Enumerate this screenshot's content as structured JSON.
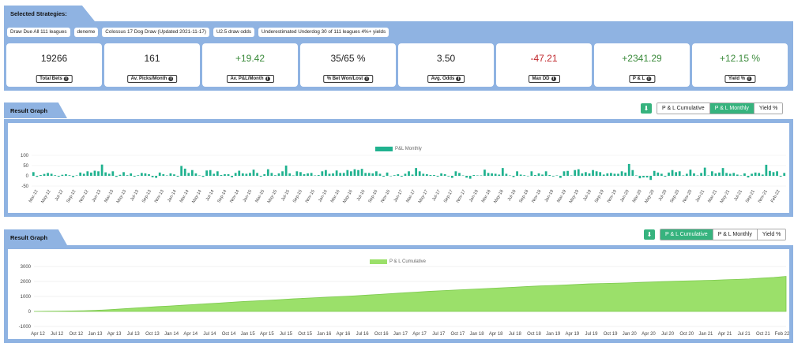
{
  "strategies": {
    "header": "Selected Strategies:",
    "tags": [
      "Draw Due All 111 leagues",
      "deneme",
      "Colossus 17 Dog Draw (Updated 2021-11-17)",
      "U2.5 draw odds",
      "Underestimated Underdog 30 of 111 leagues 4%+ yields"
    ]
  },
  "stats": [
    {
      "value": "19266",
      "label": "Total Bets",
      "tone": "neutral"
    },
    {
      "value": "161",
      "label": "Av. Picks/Month",
      "tone": "neutral"
    },
    {
      "value": "+19.42",
      "label": "Av. P&L/Month",
      "tone": "pos"
    },
    {
      "value": "35/65 %",
      "label": "% Bet Won/Lost",
      "tone": "neutral"
    },
    {
      "value": "3.50",
      "label": "Avg. Odds",
      "tone": "neutral"
    },
    {
      "value": "-47.21",
      "label": "Max DD",
      "tone": "neg"
    },
    {
      "value": "+2341.29",
      "label": "P & L",
      "tone": "pos"
    },
    {
      "value": "+12.15 %",
      "label": "Yield %",
      "tone": "pos"
    }
  ],
  "graph1": {
    "header": "Result Graph",
    "buttons": [
      "P & L Cumulative",
      "P & L Monthly",
      "Yield %"
    ],
    "active": 1
  },
  "graph2": {
    "header": "Result Graph",
    "buttons": [
      "P & L Cumulative",
      "P & L Monthly",
      "Yield %"
    ],
    "active": 0
  },
  "chart_data": [
    {
      "type": "bar",
      "legend": "P&L Monthly",
      "color": "#20b28f",
      "ylim": [
        -50,
        100
      ],
      "yticks": [
        "100",
        "50",
        "0",
        "-50"
      ],
      "xticklabels": [
        "Mar-12",
        "May-12",
        "Jul-12",
        "Sep-12",
        "Nov-12",
        "Jan-13",
        "Mar-13",
        "May-13",
        "Jul-13",
        "Sep-13",
        "Nov-13",
        "Jan-14",
        "Mar-14",
        "May-14",
        "Jul-14",
        "Sep-14",
        "Nov-14",
        "Jan-15",
        "Mar-15",
        "May-15",
        "Jul-15",
        "Sep-15",
        "Nov-15",
        "Jan-16",
        "Mar-16",
        "May-16",
        "Jul-16",
        "Sep-16",
        "Nov-16",
        "Jan-17",
        "Mar-17",
        "May-17",
        "Jul-17",
        "Sep-17",
        "Nov-17",
        "Jan-18",
        "Mar-18",
        "May-18",
        "Jul-18",
        "Sep-18",
        "Nov-18",
        "Jan-19",
        "Mar-19",
        "May-19",
        "Jul-19",
        "Sep-19",
        "Nov-19",
        "Jan-20",
        "Mar-20",
        "May-20",
        "Jul-20",
        "Sep-20",
        "Nov-20",
        "Jan-21",
        "Mar-21",
        "May-21",
        "Jul-21",
        "Sep-21",
        "Nov-21",
        "Feb-22"
      ],
      "values": [
        18,
        -5,
        4,
        9,
        14,
        10,
        3,
        -4,
        5,
        8,
        3,
        -6,
        2,
        16,
        10,
        22,
        16,
        25,
        22,
        55,
        17,
        10,
        22,
        -5,
        5,
        18,
        3,
        12,
        -4,
        3,
        14,
        12,
        8,
        -7,
        -10,
        16,
        8,
        2,
        12,
        7,
        -4,
        48,
        35,
        14,
        28,
        12,
        2,
        -5,
        26,
        28,
        10,
        22,
        4,
        8,
        8,
        -7,
        14,
        25,
        12,
        10,
        14,
        30,
        14,
        -4,
        8,
        32,
        14,
        3,
        12,
        22,
        50,
        12,
        2,
        22,
        18,
        8,
        12,
        14,
        2,
        4,
        22,
        28,
        10,
        12,
        26,
        14,
        14,
        28,
        22,
        32,
        28,
        34,
        14,
        14,
        12,
        22,
        10,
        -4,
        16,
        -2,
        3,
        8,
        -4,
        10,
        22,
        6,
        38,
        22,
        10,
        8,
        4,
        4,
        -4,
        12,
        8,
        -3,
        -10,
        22,
        14,
        2,
        -9,
        -14,
        4,
        2,
        2,
        30,
        14,
        12,
        10,
        6,
        38,
        10,
        2,
        -6,
        22,
        6,
        3,
        -2,
        22,
        4,
        12,
        6,
        22,
        4,
        -3,
        2,
        -10,
        22,
        24,
        2,
        28,
        32,
        12,
        18,
        12,
        28,
        22,
        18,
        6,
        12,
        14,
        10,
        10,
        22,
        16,
        58,
        28,
        2,
        -12,
        -8,
        -8,
        -20,
        24,
        16,
        10,
        -4,
        16,
        28,
        18,
        22,
        2,
        10,
        30,
        12,
        2,
        14,
        40,
        2,
        22,
        12,
        16,
        38,
        14,
        10,
        14,
        6,
        2,
        12,
        -8,
        10,
        16,
        14,
        6,
        54,
        24,
        18,
        22,
        -4,
        14
      ]
    },
    {
      "type": "area",
      "legend": "P & L Cumulative",
      "color": "#9be06a",
      "ylim": [
        -1000,
        3000
      ],
      "yticks": [
        "3000",
        "2000",
        "1000",
        "0",
        "-1000"
      ],
      "xticklabels": [
        "Apr 12",
        "Jul 12",
        "Oct 12",
        "Jan 13",
        "Apr 13",
        "Jul 13",
        "Oct 13",
        "Jan 14",
        "Apr 14",
        "Jul 14",
        "Oct 14",
        "Jan 15",
        "Apr 15",
        "Jul 15",
        "Oct 15",
        "Jan 16",
        "Apr 16",
        "Jul 16",
        "Oct 16",
        "Jan 17",
        "Apr 17",
        "Jul 17",
        "Oct 17",
        "Jan 18",
        "Apr 18",
        "Jul 18",
        "Oct 18",
        "Jan 19",
        "Apr 19",
        "Jul 19",
        "Oct 19",
        "Jan 20",
        "Apr 20",
        "Jul 20",
        "Oct 20",
        "Jan 21",
        "Apr 21",
        "Jul 21",
        "Oct 21",
        "Feb 22"
      ],
      "values": [
        0,
        10,
        20,
        30,
        45,
        70,
        110,
        160,
        215,
        270,
        320,
        360,
        410,
        460,
        510,
        560,
        610,
        660,
        700,
        740,
        790,
        840,
        880,
        920,
        960,
        1000,
        1040,
        1090,
        1140,
        1190,
        1240,
        1290,
        1340,
        1380,
        1420,
        1460,
        1500,
        1540,
        1580,
        1620,
        1660,
        1700,
        1730,
        1760,
        1800,
        1840,
        1860,
        1880,
        1900,
        1930,
        1960,
        1990,
        2020,
        2040,
        2060,
        2080,
        2110,
        2140,
        2170,
        2220,
        2270,
        2341
      ]
    }
  ]
}
